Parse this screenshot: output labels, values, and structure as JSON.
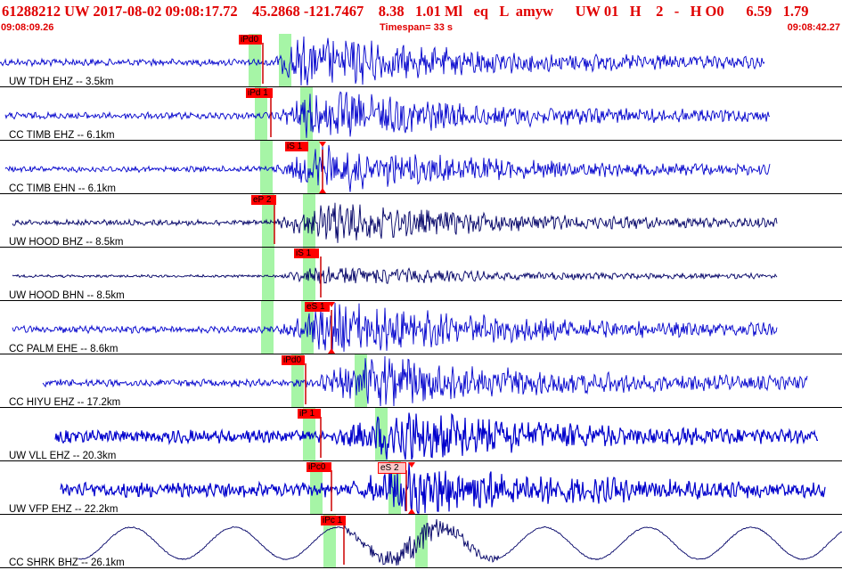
{
  "header": {
    "title": "61288212 UW 2017-08-02 09:08:17.72    45.2868 -121.7467    8.38   1.01 Ml   eq   L  amyw      UW 01   H    2   -   H O0      6.59   1.79",
    "start_time": "09:08:09.26",
    "timespan": "Timespan=  33 s",
    "end_time": "09:08:42.27"
  },
  "colors": {
    "header_text": "#e00000",
    "waveform": "#0000cc",
    "waveform_dark": "#000066",
    "pick_bg": "#ff0000",
    "pick_bg_light": "#ffc8c8",
    "pick_line": "#cc0000",
    "window_green": "#a6f5a6",
    "separator": "#000000"
  },
  "channels": [
    {
      "label": "UW TDH EHZ -- 3.5km",
      "picks": [
        {
          "label": "iPd0",
          "style": "red"
        }
      ]
    },
    {
      "label": "CC TIMB EHZ -- 6.1km",
      "picks": [
        {
          "label": "iPd 1",
          "style": "red"
        }
      ]
    },
    {
      "label": "CC TIMB EHN -- 6.1km",
      "picks": [
        {
          "label": "iS 1",
          "style": "red"
        }
      ]
    },
    {
      "label": "UW HOOD BHZ -- 8.5km",
      "picks": [
        {
          "label": "eP 2",
          "style": "red"
        }
      ]
    },
    {
      "label": "UW HOOD BHN -- 8.5km",
      "picks": [
        {
          "label": "iS 1",
          "style": "red"
        }
      ]
    },
    {
      "label": "CC PALM EHE -- 8.6km",
      "picks": [
        {
          "label": "eS 1",
          "style": "red"
        }
      ]
    },
    {
      "label": "CC HIYU EHZ -- 17.2km",
      "picks": [
        {
          "label": "iPd0",
          "style": "red"
        }
      ]
    },
    {
      "label": "UW VLL EHZ -- 20.3km",
      "picks": [
        {
          "label": "iP 1",
          "style": "red"
        }
      ]
    },
    {
      "label": "UW VFP EHZ -- 22.2km",
      "picks": [
        {
          "label": "iPc0",
          "style": "red"
        },
        {
          "label": "eS 2",
          "style": "light"
        }
      ]
    },
    {
      "label": "CC SHRK BHZ -- 26.1km",
      "picks": [
        {
          "label": "iPc 1",
          "style": "red"
        }
      ]
    }
  ]
}
